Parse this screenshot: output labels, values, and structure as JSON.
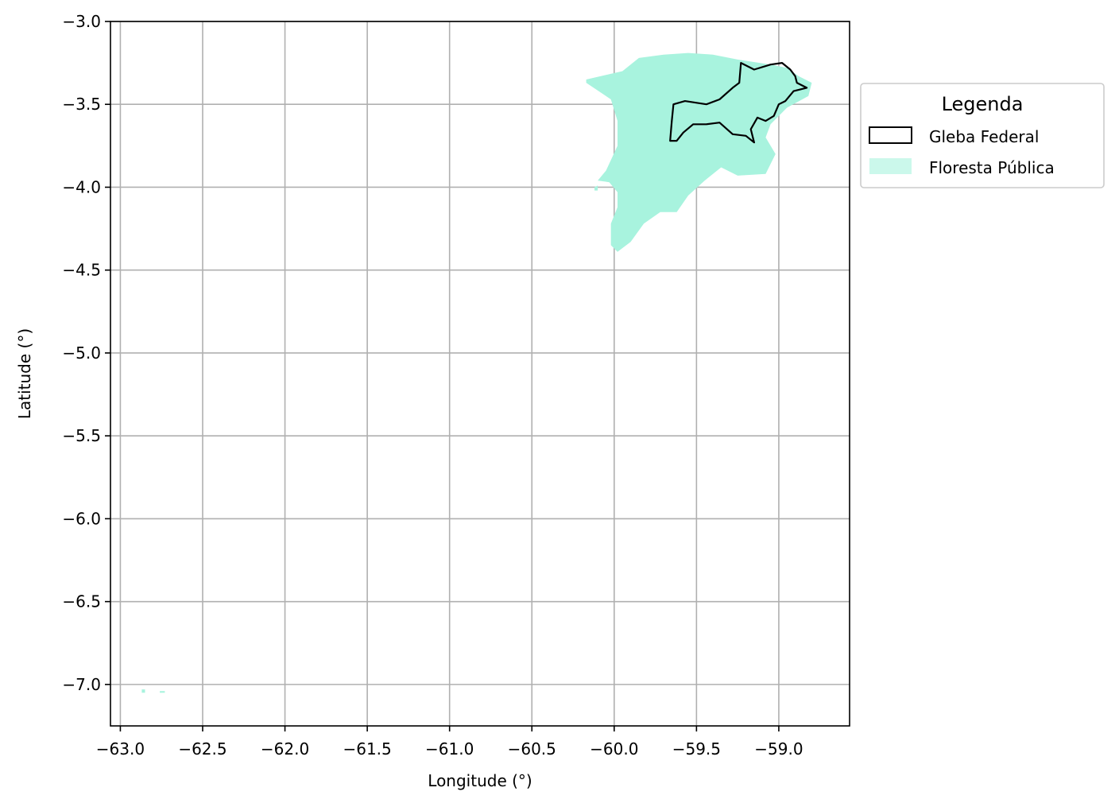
{
  "chart_data": {
    "type": "map",
    "xlabel": "Longitude (°)",
    "ylabel": "Latitude (°)",
    "xlim": [
      -63.06,
      -58.57
    ],
    "ylim": [
      -7.25,
      -3.0
    ],
    "xticks": [
      -63.0,
      -62.5,
      -62.0,
      -61.5,
      -61.0,
      -60.5,
      -60.0,
      -59.5,
      -59.0
    ],
    "xtick_labels": [
      "−63.0",
      "−62.5",
      "−62.0",
      "−61.5",
      "−61.0",
      "−60.5",
      "−60.0",
      "−59.5",
      "−59.0"
    ],
    "yticks": [
      -3.0,
      -3.5,
      -4.0,
      -4.5,
      -5.0,
      -5.5,
      -6.0,
      -6.5,
      -7.0
    ],
    "ytick_labels": [
      "−3.0",
      "−3.5",
      "−4.0",
      "−4.5",
      "−5.0",
      "−5.5",
      "−6.0",
      "−6.5",
      "−7.0"
    ],
    "grid": true,
    "legend": {
      "title": "Legenda",
      "placement": "outside-upper-right",
      "entries": [
        {
          "label": "Gleba Federal",
          "style": "outline",
          "color": "#000000"
        },
        {
          "label": "Floresta Pública",
          "style": "fill",
          "color": "#a8f3de"
        }
      ]
    },
    "layers": {
      "floresta_publica": {
        "color": "#a8f3de",
        "polygons": [
          [
            [
              -60.17,
              -3.35
            ],
            [
              -59.95,
              -3.3
            ],
            [
              -59.85,
              -3.22
            ],
            [
              -59.7,
              -3.2
            ],
            [
              -59.55,
              -3.19
            ],
            [
              -59.4,
              -3.2
            ],
            [
              -59.25,
              -3.23
            ],
            [
              -59.05,
              -3.26
            ],
            [
              -58.95,
              -3.28
            ],
            [
              -58.88,
              -3.33
            ],
            [
              -58.8,
              -3.37
            ],
            [
              -58.82,
              -3.45
            ],
            [
              -58.95,
              -3.52
            ],
            [
              -59.05,
              -3.62
            ],
            [
              -59.08,
              -3.7
            ],
            [
              -59.02,
              -3.8
            ],
            [
              -59.08,
              -3.92
            ],
            [
              -59.25,
              -3.93
            ],
            [
              -59.35,
              -3.88
            ],
            [
              -59.45,
              -3.96
            ],
            [
              -59.55,
              -4.05
            ],
            [
              -59.62,
              -4.15
            ],
            [
              -59.72,
              -4.15
            ],
            [
              -59.82,
              -4.22
            ],
            [
              -59.9,
              -4.33
            ],
            [
              -59.98,
              -4.39
            ],
            [
              -60.02,
              -4.35
            ],
            [
              -60.02,
              -4.22
            ],
            [
              -59.98,
              -4.12
            ],
            [
              -59.98,
              -4.03
            ],
            [
              -60.03,
              -3.97
            ],
            [
              -60.1,
              -3.96
            ],
            [
              -60.05,
              -3.9
            ],
            [
              -59.98,
              -3.75
            ],
            [
              -59.98,
              -3.6
            ],
            [
              -60.02,
              -3.47
            ],
            [
              -60.17,
              -3.37
            ]
          ]
        ],
        "islands": [
          [
            [
              -60.12,
              -4.0
            ],
            [
              -60.1,
              -3.99
            ],
            [
              -60.1,
              -4.02
            ],
            [
              -60.12,
              -4.02
            ]
          ],
          [
            [
              -62.87,
              -7.03
            ],
            [
              -62.85,
              -7.03
            ],
            [
              -62.85,
              -7.05
            ],
            [
              -62.87,
              -7.05
            ]
          ],
          [
            [
              -62.76,
              -7.04
            ],
            [
              -62.73,
              -7.04
            ],
            [
              -62.73,
              -7.05
            ],
            [
              -62.76,
              -7.05
            ]
          ]
        ]
      },
      "gleba_federal": {
        "color": "#000000",
        "polygon": [
          [
            -59.66,
            -3.72
          ],
          [
            -59.65,
            -3.6
          ],
          [
            -59.64,
            -3.5
          ],
          [
            -59.57,
            -3.48
          ],
          [
            -59.44,
            -3.5
          ],
          [
            -59.36,
            -3.47
          ],
          [
            -59.28,
            -3.4
          ],
          [
            -59.24,
            -3.37
          ],
          [
            -59.23,
            -3.25
          ],
          [
            -59.15,
            -3.29
          ],
          [
            -59.05,
            -3.26
          ],
          [
            -58.98,
            -3.25
          ],
          [
            -58.93,
            -3.29
          ],
          [
            -58.9,
            -3.33
          ],
          [
            -58.89,
            -3.37
          ],
          [
            -58.83,
            -3.4
          ],
          [
            -58.91,
            -3.42
          ],
          [
            -58.96,
            -3.48
          ],
          [
            -59.0,
            -3.5
          ],
          [
            -59.03,
            -3.57
          ],
          [
            -59.08,
            -3.6
          ],
          [
            -59.13,
            -3.58
          ],
          [
            -59.17,
            -3.65
          ],
          [
            -59.15,
            -3.73
          ],
          [
            -59.2,
            -3.69
          ],
          [
            -59.28,
            -3.68
          ],
          [
            -59.36,
            -3.61
          ],
          [
            -59.44,
            -3.62
          ],
          [
            -59.52,
            -3.62
          ],
          [
            -59.58,
            -3.67
          ],
          [
            -59.62,
            -3.72
          ]
        ]
      }
    }
  }
}
